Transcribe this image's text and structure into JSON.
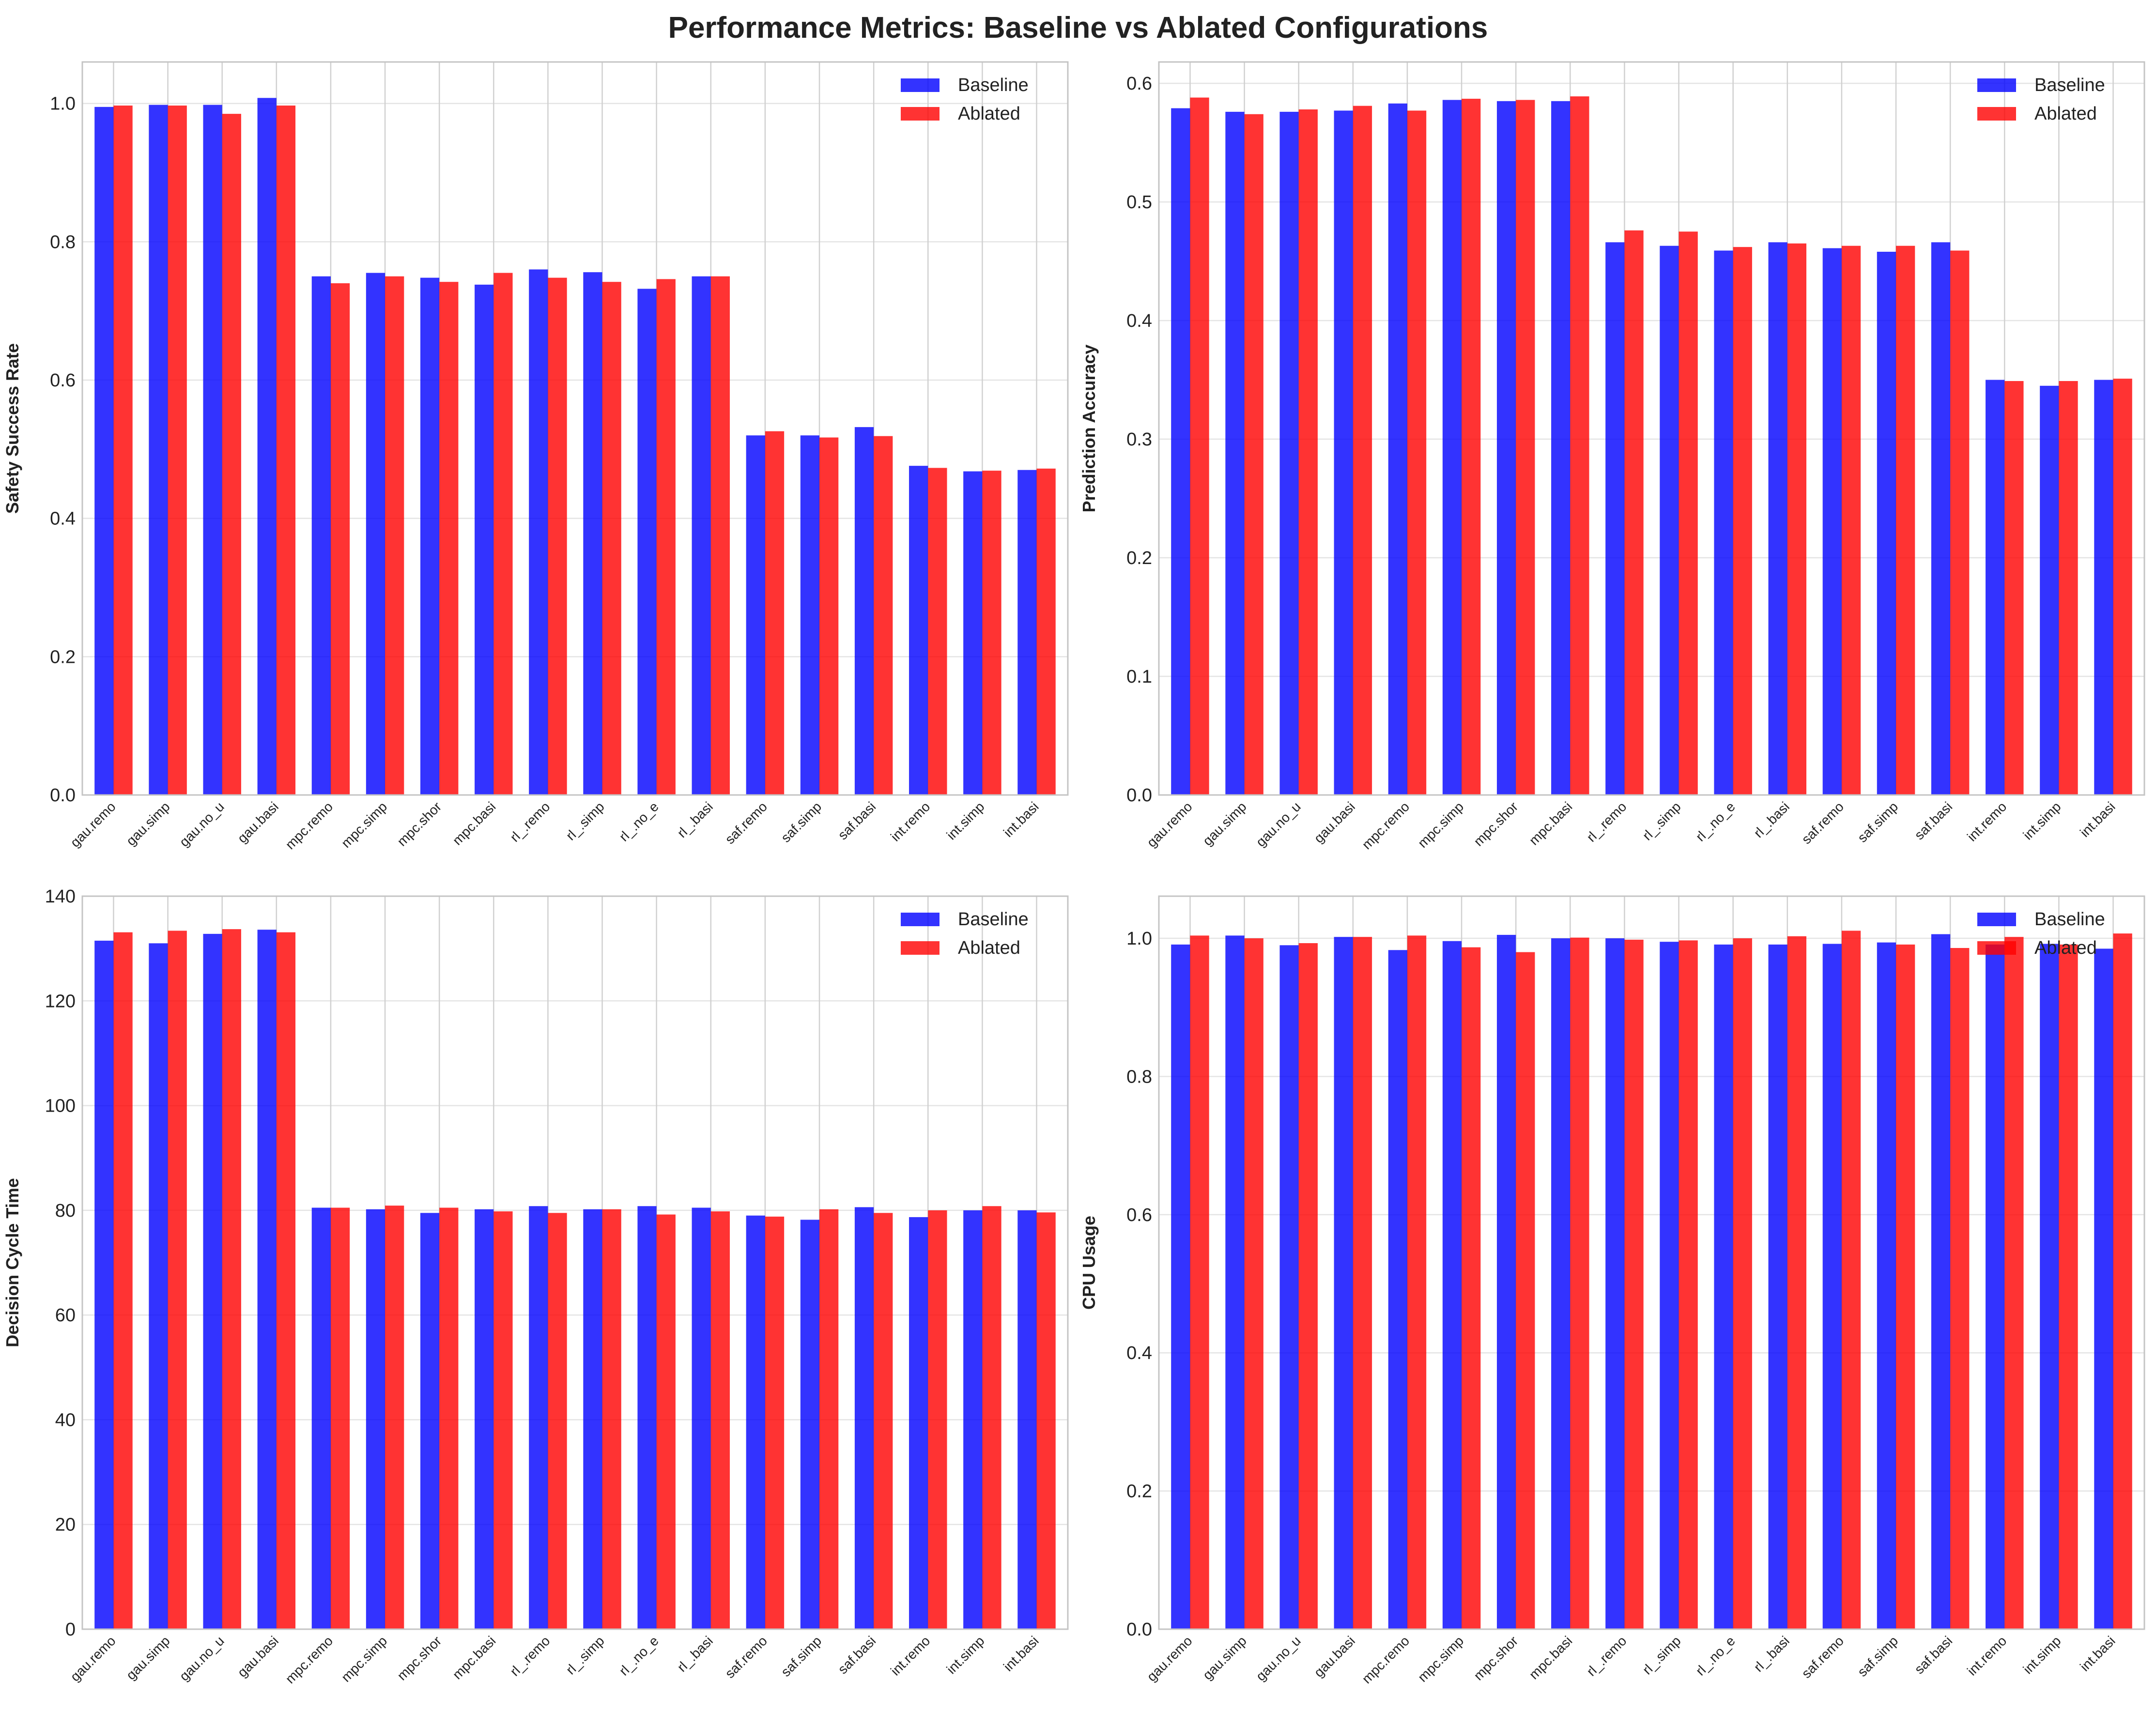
{
  "title": "Performance Metrics: Baseline vs Ablated Configurations",
  "legend": {
    "baseline": "Baseline",
    "ablated": "Ablated"
  },
  "colors": {
    "baseline": "#0000ff",
    "ablated": "#ff0000",
    "bar_alpha": 0.8
  },
  "chart_data": [
    {
      "type": "bar",
      "panel": "top-left",
      "title": "",
      "xlabel": "",
      "ylabel": "Safety Success Rate",
      "ylim": [
        0,
        1.06
      ],
      "yticks": [
        "0.0",
        "0.2",
        "0.4",
        "0.6",
        "0.8",
        "1.0"
      ],
      "ytick_values": [
        0,
        0.2,
        0.4,
        0.6,
        0.8,
        1.0
      ],
      "legend_position": "top-right",
      "grid": true,
      "categories": [
        "gau.remo",
        "gau.simp",
        "gau.no_u",
        "gau.basi",
        "mpc.remo",
        "mpc.simp",
        "mpc.shor",
        "mpc.basi",
        "rl_.remo",
        "rl_.simp",
        "rl_.no_e",
        "rl_.basi",
        "saf.remo",
        "saf.simp",
        "saf.basi",
        "int.remo",
        "int.simp",
        "int.basi"
      ],
      "series": [
        {
          "name": "Baseline",
          "values": [
            0.995,
            0.998,
            0.998,
            1.008,
            0.75,
            0.755,
            0.748,
            0.738,
            0.76,
            0.756,
            0.732,
            0.75,
            0.52,
            0.52,
            0.532,
            0.476,
            0.468,
            0.47
          ]
        },
        {
          "name": "Ablated",
          "values": [
            0.997,
            0.997,
            0.985,
            0.997,
            0.74,
            0.75,
            0.742,
            0.755,
            0.748,
            0.742,
            0.746,
            0.75,
            0.526,
            0.517,
            0.519,
            0.473,
            0.469,
            0.472
          ]
        }
      ]
    },
    {
      "type": "bar",
      "panel": "top-right",
      "title": "",
      "xlabel": "",
      "ylabel": "Prediction Accuracy",
      "ylim": [
        0,
        0.618
      ],
      "yticks": [
        "0.0",
        "0.1",
        "0.2",
        "0.3",
        "0.4",
        "0.5",
        "0.6"
      ],
      "ytick_values": [
        0,
        0.1,
        0.2,
        0.3,
        0.4,
        0.5,
        0.6
      ],
      "legend_position": "top-right",
      "grid": true,
      "categories": [
        "gau.remo",
        "gau.simp",
        "gau.no_u",
        "gau.basi",
        "mpc.remo",
        "mpc.simp",
        "mpc.shor",
        "mpc.basi",
        "rl_.remo",
        "rl_.simp",
        "rl_.no_e",
        "rl_.basi",
        "saf.remo",
        "saf.simp",
        "saf.basi",
        "int.remo",
        "int.simp",
        "int.basi"
      ],
      "series": [
        {
          "name": "Baseline",
          "values": [
            0.579,
            0.576,
            0.576,
            0.577,
            0.583,
            0.586,
            0.585,
            0.585,
            0.466,
            0.463,
            0.459,
            0.466,
            0.461,
            0.458,
            0.466,
            0.35,
            0.345,
            0.35
          ]
        },
        {
          "name": "Ablated",
          "values": [
            0.588,
            0.574,
            0.578,
            0.581,
            0.577,
            0.587,
            0.586,
            0.589,
            0.476,
            0.475,
            0.462,
            0.465,
            0.463,
            0.463,
            0.459,
            0.349,
            0.349,
            0.351
          ]
        }
      ]
    },
    {
      "type": "bar",
      "panel": "bottom-left",
      "title": "",
      "xlabel": "",
      "ylabel": "Decision Cycle Time",
      "ylim": [
        0,
        140
      ],
      "yticks": [
        "0",
        "20",
        "40",
        "60",
        "80",
        "100",
        "120",
        "140"
      ],
      "ytick_values": [
        0,
        20,
        40,
        60,
        80,
        100,
        120,
        140
      ],
      "legend_position": "top-right",
      "grid": true,
      "categories": [
        "gau.remo",
        "gau.simp",
        "gau.no_u",
        "gau.basi",
        "mpc.remo",
        "mpc.simp",
        "mpc.shor",
        "mpc.basi",
        "rl_.remo",
        "rl_.simp",
        "rl_.no_e",
        "rl_.basi",
        "saf.remo",
        "saf.simp",
        "saf.basi",
        "int.remo",
        "int.simp",
        "int.basi"
      ],
      "series": [
        {
          "name": "Baseline",
          "values": [
            131.5,
            131.0,
            132.8,
            133.6,
            80.5,
            80.2,
            79.5,
            80.2,
            80.8,
            80.2,
            80.8,
            80.5,
            79.0,
            78.2,
            80.6,
            78.7,
            80.0,
            80.0
          ]
        },
        {
          "name": "Ablated",
          "values": [
            133.1,
            133.4,
            133.7,
            133.1,
            80.5,
            80.9,
            80.5,
            79.8,
            79.5,
            80.2,
            79.2,
            79.8,
            78.8,
            80.2,
            79.5,
            80.0,
            80.8,
            79.6
          ]
        }
      ]
    },
    {
      "type": "bar",
      "panel": "bottom-right",
      "title": "",
      "xlabel": "",
      "ylabel": "CPU Usage",
      "ylim": [
        0,
        1.061
      ],
      "yticks": [
        "0.0",
        "0.2",
        "0.4",
        "0.6",
        "0.8",
        "1.0"
      ],
      "ytick_values": [
        0,
        0.2,
        0.4,
        0.6,
        0.8,
        1.0
      ],
      "legend_position": "top-right",
      "grid": true,
      "categories": [
        "gau.remo",
        "gau.simp",
        "gau.no_u",
        "gau.basi",
        "mpc.remo",
        "mpc.simp",
        "mpc.shor",
        "mpc.basi",
        "rl_.remo",
        "rl_.simp",
        "rl_.no_e",
        "rl_.basi",
        "saf.remo",
        "saf.simp",
        "saf.basi",
        "int.remo",
        "int.simp",
        "int.basi"
      ],
      "series": [
        {
          "name": "Baseline",
          "values": [
            0.991,
            1.004,
            0.99,
            1.002,
            0.983,
            0.996,
            1.005,
            1.0,
            1.0,
            0.995,
            0.991,
            0.991,
            0.992,
            0.994,
            1.006,
            0.991,
            0.992,
            0.985
          ]
        },
        {
          "name": "Ablated",
          "values": [
            1.004,
            1.0,
            0.993,
            1.002,
            1.004,
            0.987,
            0.98,
            1.001,
            0.998,
            0.997,
            1.0,
            1.003,
            1.011,
            0.991,
            0.986,
            1.002,
            0.991,
            1.007
          ]
        }
      ]
    }
  ]
}
